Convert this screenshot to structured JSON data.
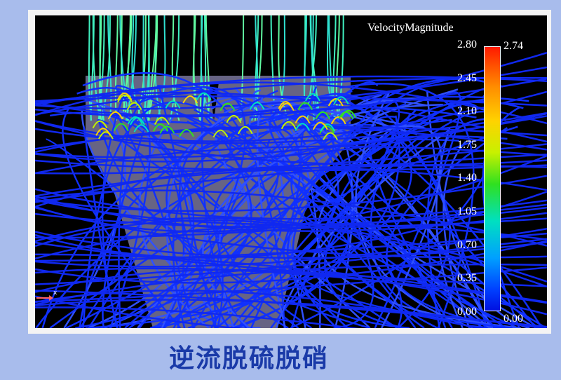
{
  "visualization": {
    "legend_title": "VelocityMagnitude",
    "scale_ticks": [
      "2.80",
      "2.45",
      "2.10",
      "1.75",
      "1.40",
      "1.05",
      "0.70",
      "0.35",
      "0.00"
    ],
    "data_max": "2.74",
    "data_min": "0.00",
    "axis_label": "x",
    "colors": {
      "low": "#0010e0",
      "mid": "#30e020",
      "high": "#ff1a00",
      "background": "#000000"
    }
  },
  "caption": "逆流脱硫脱硝"
}
